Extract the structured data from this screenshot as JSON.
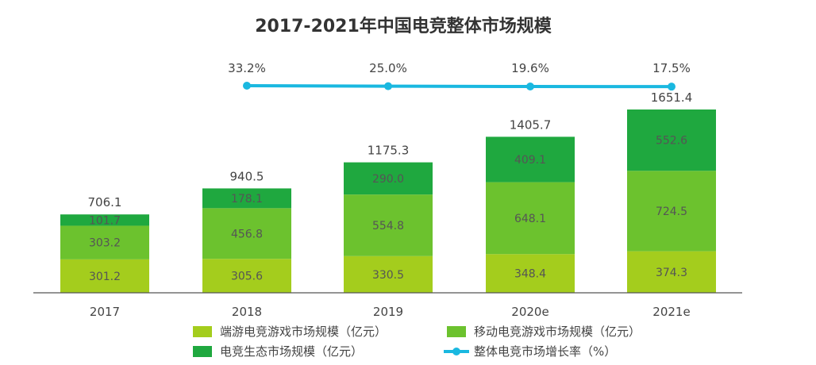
{
  "chart_data": {
    "type": "bar",
    "title": "2017-2021年中国电竞整体市场规模",
    "categories": [
      "2017",
      "2018",
      "2019",
      "2020e",
      "2021e"
    ],
    "stacked": true,
    "series": [
      {
        "name": "端游电竞游戏市场规模（亿元）",
        "color": "#a4cd1d",
        "values": [
          301.2,
          305.6,
          330.5,
          348.4,
          374.3
        ]
      },
      {
        "name": "移动电竞游戏市场规模（亿元）",
        "color": "#6cc22e",
        "values": [
          303.2,
          456.8,
          554.8,
          648.1,
          724.5
        ]
      },
      {
        "name": "电竞生态市场规模（亿元）",
        "color": "#1fa83f",
        "values": [
          101.7,
          178.1,
          290.0,
          409.1,
          552.6
        ]
      }
    ],
    "totals": [
      706.1,
      940.5,
      1175.3,
      1405.7,
      1651.4
    ],
    "line_series": {
      "name": "整体电竞市场增长率（%）",
      "color": "#1ab8e0",
      "values": [
        null,
        33.2,
        25.0,
        19.6,
        17.5
      ],
      "labels": [
        "",
        "33.2%",
        "25.0%",
        "19.6%",
        "17.5%"
      ]
    },
    "legend_position": "bottom",
    "grid": false
  }
}
